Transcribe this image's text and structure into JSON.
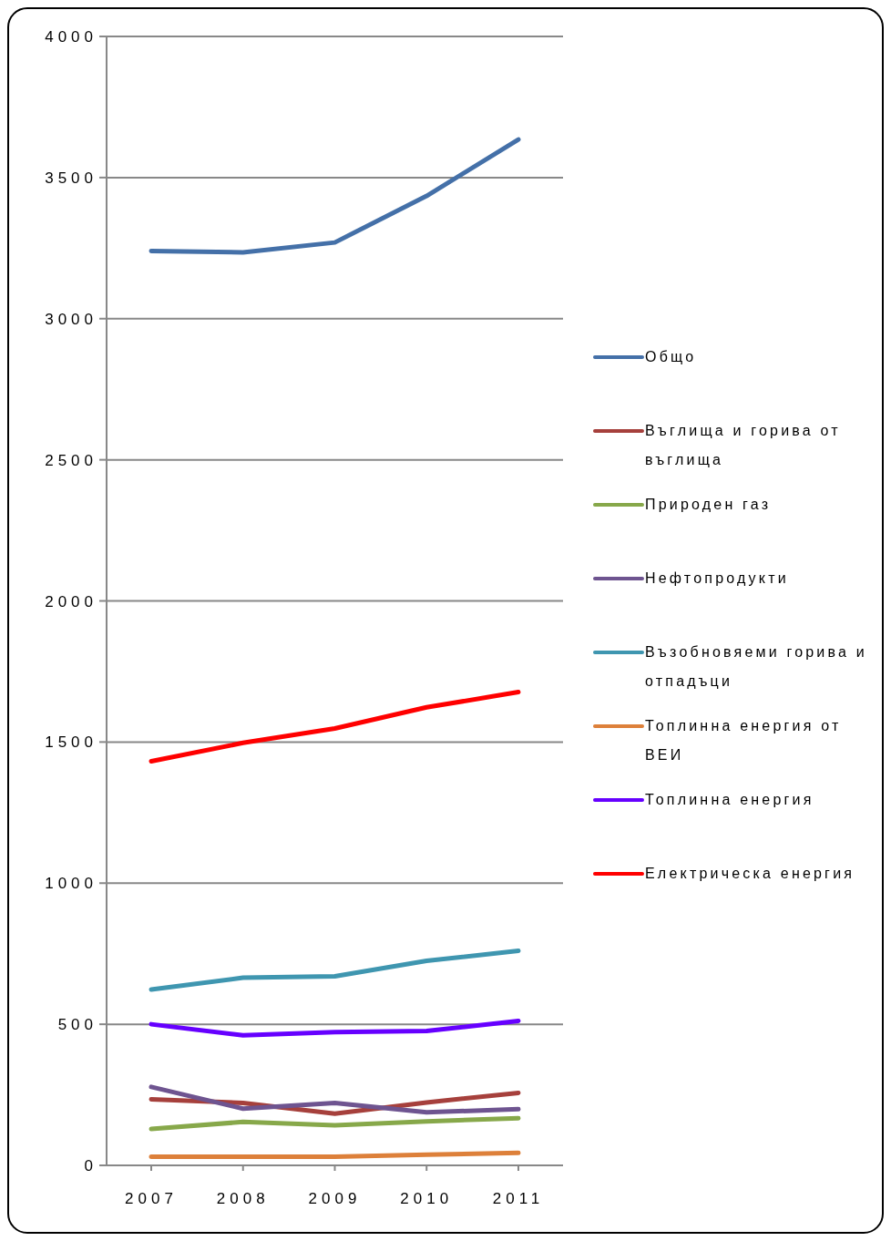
{
  "chart_data": {
    "type": "line",
    "categories": [
      "2007",
      "2008",
      "2009",
      "2010",
      "2011"
    ],
    "ylim": [
      0,
      4000
    ],
    "yticks": [
      0,
      500,
      1000,
      1500,
      2000,
      2500,
      3000,
      3500,
      4000
    ],
    "grid": "y",
    "legend": "right",
    "marker": "none",
    "line_style": "solid",
    "series": [
      {
        "name": "Общо",
        "color": "#4470a8",
        "values": [
          3240,
          3235,
          3270,
          3435,
          3635
        ]
      },
      {
        "name": "Въглища и горива от въглища",
        "color": "#a6403c",
        "values": [
          234,
          221,
          183,
          223,
          257
        ]
      },
      {
        "name": "Природен газ",
        "color": "#87a84a",
        "values": [
          129,
          154,
          142,
          156,
          167
        ]
      },
      {
        "name": "Нефтопродукти",
        "color": "#6e5490",
        "values": [
          278,
          201,
          221,
          188,
          199
        ]
      },
      {
        "name": "Възобновяеми горива и отпадъци",
        "color": "#3f96b0",
        "values": [
          623,
          665,
          670,
          725,
          760
        ]
      },
      {
        "name": "Топлинна енергия от ВЕИ",
        "color": "#dd803a",
        "values": [
          31,
          31,
          31,
          38,
          44
        ]
      },
      {
        "name": "Топлинна енергия",
        "color": "#6600ff",
        "values": [
          500,
          461,
          472,
          476,
          512
        ]
      },
      {
        "name": "Електрическа енергия",
        "color": "#ff0000",
        "values": [
          1432,
          1497,
          1548,
          1623,
          1677
        ]
      }
    ]
  }
}
